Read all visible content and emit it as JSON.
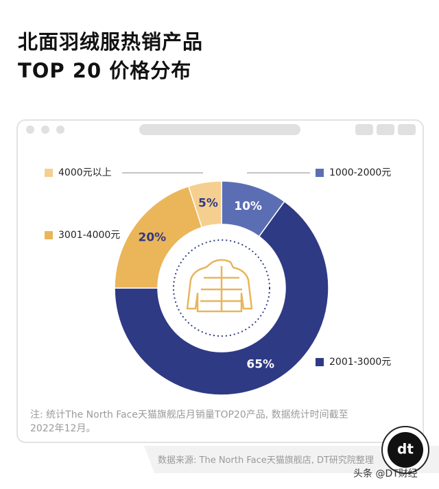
{
  "chart_data": {
    "type": "donut",
    "title": "北面羽绒服热销产品",
    "subtitle": "TOP 20 价格分布",
    "categories": [
      "1000-2000元",
      "2001-3000元",
      "3001-4000元",
      "4000元以上"
    ],
    "values": [
      10,
      65,
      20,
      5
    ],
    "value_labels": [
      "10%",
      "65%",
      "20%",
      "5%"
    ],
    "colors": [
      "#5b6eb3",
      "#2f3a85",
      "#ebb559",
      "#f5cf8f"
    ],
    "note": "注: 统计The North Face天猫旗舰店月销量TOP20产品, 数据统计时间截至2022年12月。",
    "source": "数据来源: The North Face天猫旗舰店, DT研究院整理"
  },
  "footer": {
    "brand": "头条 @DT财经",
    "logo": "dt"
  }
}
